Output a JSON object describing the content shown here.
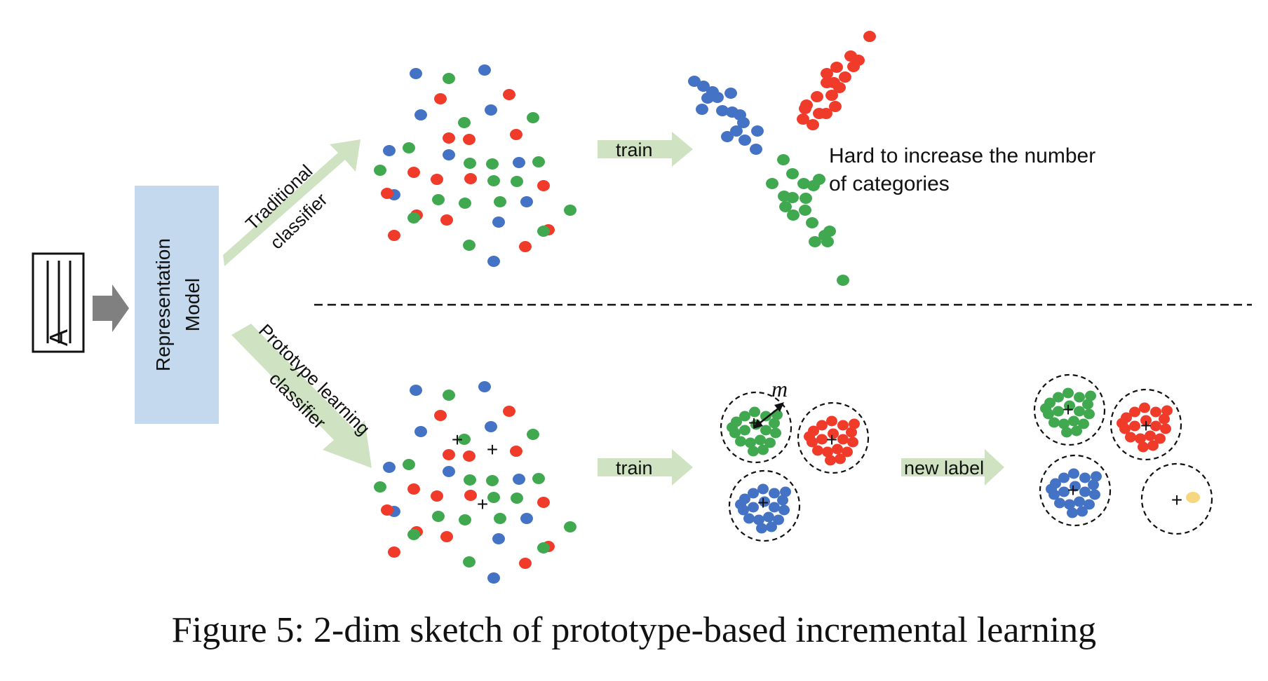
{
  "colors": {
    "blue": "#4472c4",
    "red": "#f03a2a",
    "green": "#40a950",
    "yellow": "#f7d680",
    "arrow_green": "#cfe3c3",
    "arrow_gray": "#808080",
    "box_blue": "#c4d9ee"
  },
  "input_icon": {
    "name": "document-icon",
    "letter": "A"
  },
  "model": {
    "label_line1": "Representation",
    "label_line2": "Model"
  },
  "branches": {
    "traditional": {
      "line1": "Traditional",
      "line2": "classifier"
    },
    "prototype": {
      "line1": "Prototype learning",
      "line2": "classifier"
    }
  },
  "arrows": {
    "train_top": "train",
    "train_bottom": "train",
    "new_label": "new label"
  },
  "note": {
    "line1": "Hard to increase the number",
    "line2": "of categories"
  },
  "margin_symbol": "m",
  "prototype_marker": "+",
  "caption": "Figure 5: 2-dim sketch of prototype-based incremental learning"
}
